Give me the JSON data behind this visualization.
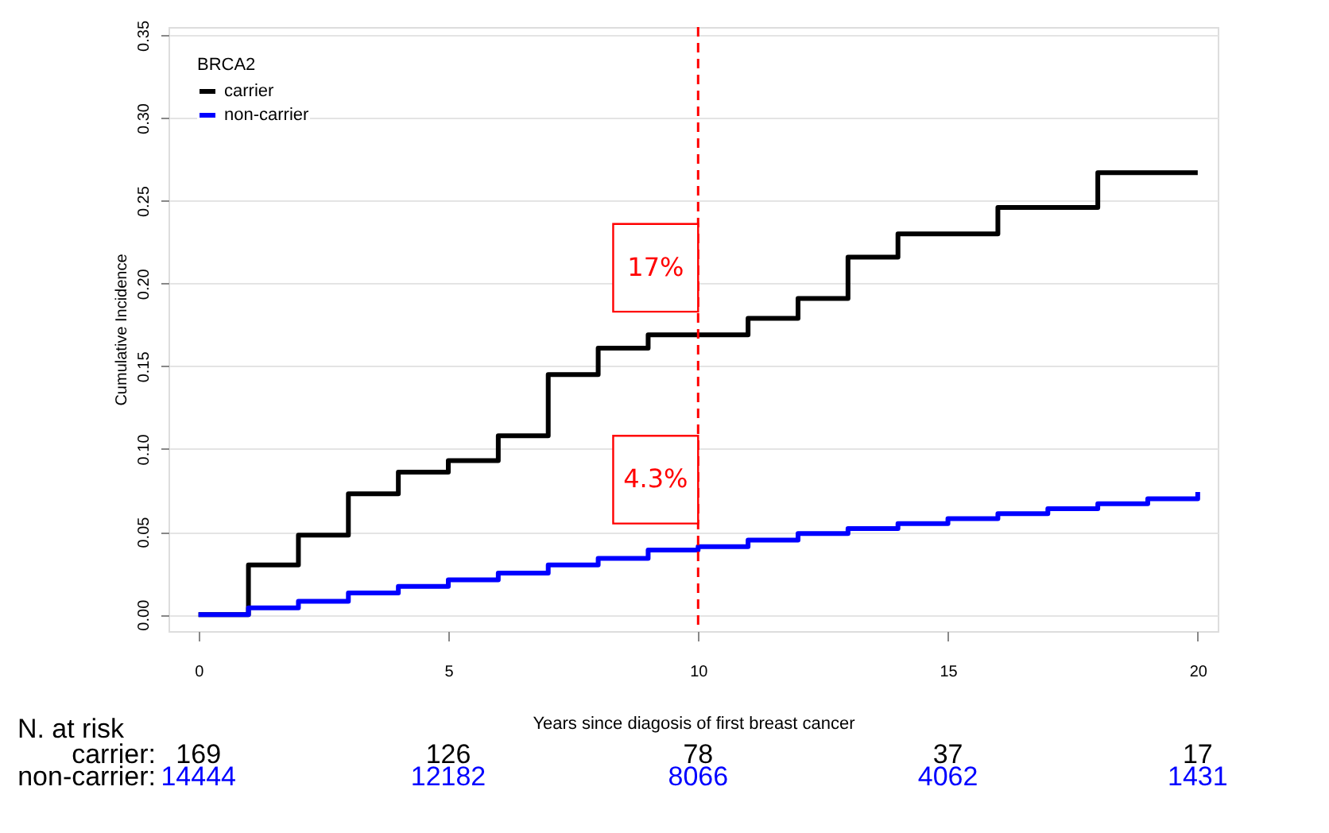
{
  "chart_data": {
    "type": "step",
    "xlabel": "Years since diagosis of first breast cancer",
    "ylabel": "Cumulative Incidence",
    "legend_title": "BRCA2",
    "xlim": [
      -0.6,
      20.4
    ],
    "xticks": [
      0,
      5,
      10,
      15,
      20
    ],
    "ylim": [
      -0.01,
      0.355
    ],
    "yticks": [
      {
        "value": 0,
        "label": "0.00"
      },
      0.05,
      {
        "value": 0.1,
        "label": "0.10"
      },
      0.15,
      {
        "value": 0.2,
        "label": "0.20"
      },
      0.25,
      {
        "value": 0.3,
        "label": "0.30"
      },
      0.35
    ],
    "grid": "y",
    "legend": "top left",
    "line_style": "solid",
    "marker": "none",
    "series": [
      {
        "name": "carrier",
        "color": "#000000",
        "x": [
          0,
          1,
          2,
          3,
          4,
          5,
          6,
          7,
          8,
          9,
          11,
          12,
          13,
          14,
          16,
          18,
          20
        ],
        "values": [
          0,
          0.03,
          0.048,
          0.073,
          0.086,
          0.093,
          0.108,
          0.145,
          0.161,
          0.169,
          0.179,
          0.191,
          0.216,
          0.23,
          0.246,
          0.267,
          0.267
        ]
      },
      {
        "name": "non-carrier",
        "color": "#0000ff",
        "x": [
          0,
          1,
          2,
          3,
          4,
          5,
          6,
          7,
          8,
          9,
          10,
          11,
          12,
          13,
          14,
          15,
          16,
          17,
          18,
          19,
          20
        ],
        "values": [
          0,
          0.004,
          0.008,
          0.013,
          0.017,
          0.021,
          0.025,
          0.03,
          0.034,
          0.039,
          0.041,
          0.045,
          0.049,
          0.052,
          0.055,
          0.058,
          0.061,
          0.064,
          0.067,
          0.07,
          0.074
        ]
      }
    ],
    "ref_lines": [
      {
        "axis": "x",
        "value": 10,
        "color": "#ff0000",
        "line_style": "dashed"
      }
    ],
    "annotations": [
      {
        "text": "17%",
        "x": 10,
        "y": 0.169
      },
      {
        "text": "4.3%",
        "x": 10,
        "y": 0.041
      },
      "N. at risk",
      "carrier:",
      "non-carrier:",
      "169",
      "126",
      "78",
      "37",
      "17",
      "14444",
      "12182",
      "8066",
      "4062",
      "1431"
    ]
  }
}
